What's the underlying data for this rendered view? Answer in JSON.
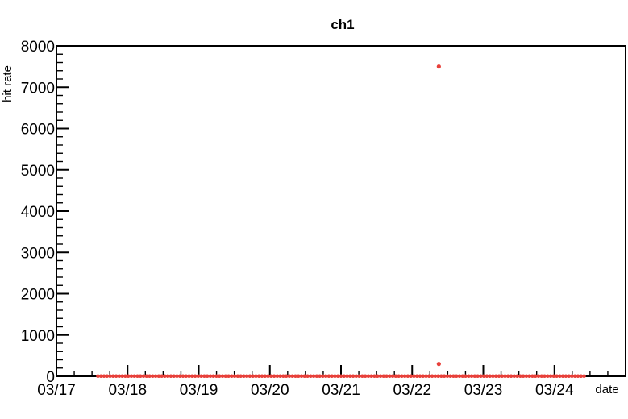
{
  "chart_data": {
    "type": "scatter",
    "title": "ch1",
    "xlabel": "date",
    "ylabel": "hit rate",
    "x_range": [
      "03/17",
      "03/25"
    ],
    "ylim": [
      0,
      8000
    ],
    "y_ticks": [
      0,
      1000,
      2000,
      3000,
      4000,
      5000,
      6000,
      7000,
      8000
    ],
    "y_tick_labels": [
      "0",
      "1000",
      "2000",
      "3000",
      "4000",
      "5000",
      "6000",
      "7000",
      "8000"
    ],
    "x_tick_labels": [
      "03/17",
      "03/18",
      "03/19",
      "03/20",
      "03/21",
      "03/22",
      "03/23",
      "03/24"
    ],
    "grid": false,
    "legend": "none",
    "marker_color": "#e8403a",
    "series": [
      {
        "baseline_span": [
          "03/17 14:00",
          "03/24 10:00"
        ],
        "baseline_value": 5,
        "points": [
          {
            "x": "03/22 09:00",
            "y": 7500
          },
          {
            "x": "03/22 09:00",
            "y": 300
          }
        ]
      }
    ]
  }
}
